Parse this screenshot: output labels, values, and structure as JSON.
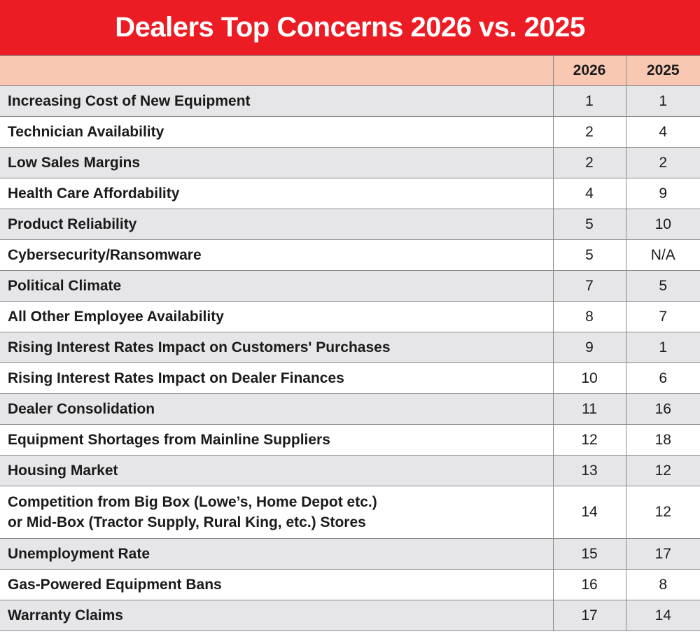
{
  "title": "Dealers Top Concerns 2026 vs. 2025",
  "chart_data": {
    "type": "table",
    "title": "Dealers Top Concerns 2026 vs. 2025",
    "columns": [
      "",
      "2026",
      "2025"
    ],
    "rows": [
      {
        "lines": [
          "Increasing Cost of New Equipment"
        ],
        "y2026": "1",
        "y2025": "1"
      },
      {
        "lines": [
          "Technician Availability"
        ],
        "y2026": "2",
        "y2025": "4"
      },
      {
        "lines": [
          "Low Sales Margins"
        ],
        "y2026": "2",
        "y2025": "2"
      },
      {
        "lines": [
          "Health Care Affordability"
        ],
        "y2026": "4",
        "y2025": "9"
      },
      {
        "lines": [
          "Product Reliability"
        ],
        "y2026": "5",
        "y2025": "10"
      },
      {
        "lines": [
          "Cybersecurity/Ransomware"
        ],
        "y2026": "5",
        "y2025": "N/A"
      },
      {
        "lines": [
          "Political Climate"
        ],
        "y2026": "7",
        "y2025": "5"
      },
      {
        "lines": [
          "All Other Employee Availability"
        ],
        "y2026": "8",
        "y2025": "7"
      },
      {
        "lines": [
          "Rising Interest Rates Impact on Customers' Purchases"
        ],
        "y2026": "9",
        "y2025": "1"
      },
      {
        "lines": [
          "Rising Interest Rates Impact on Dealer Finances"
        ],
        "y2026": "10",
        "y2025": "6"
      },
      {
        "lines": [
          "Dealer Consolidation"
        ],
        "y2026": "11",
        "y2025": "16"
      },
      {
        "lines": [
          "Equipment Shortages from Mainline Suppliers"
        ],
        "y2026": "12",
        "y2025": "18"
      },
      {
        "lines": [
          "Housing Market"
        ],
        "y2026": "13",
        "y2025": "12"
      },
      {
        "lines": [
          "Competition from Big Box (Lowe’s, Home Depot etc.)",
          "or Mid-Box (Tractor Supply, Rural King, etc.) Stores"
        ],
        "y2026": "14",
        "y2025": "12"
      },
      {
        "lines": [
          "Unemployment Rate"
        ],
        "y2026": "15",
        "y2025": "17"
      },
      {
        "lines": [
          "Gas-Powered Equipment Bans"
        ],
        "y2026": "16",
        "y2025": "8"
      },
      {
        "lines": [
          "Warranty Claims"
        ],
        "y2026": "17",
        "y2025": "14"
      }
    ]
  },
  "colors": {
    "title_bar": "#ec1c24",
    "header_row": "#f8c8b3",
    "odd_row": "#e6e6e8",
    "even_row": "#ffffff",
    "grid": "#8a8a8a"
  }
}
